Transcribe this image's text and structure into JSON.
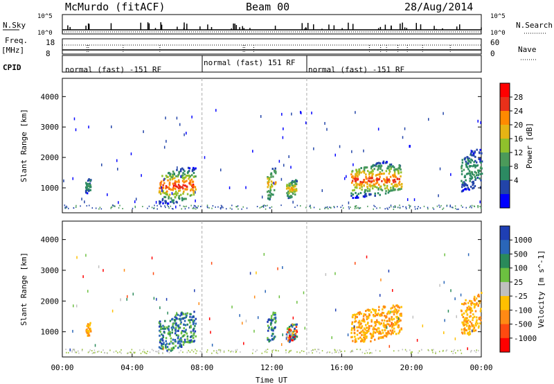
{
  "header": {
    "site": "McMurdo (fitACF)",
    "beam": "Beam 00",
    "date": "28/Aug/2014"
  },
  "top_panels": {
    "nsky_label": "N.Sky",
    "nsky_ticks": [
      "10^5",
      "10^0"
    ],
    "nsearch_label": "N.Search",
    "nsearch_ticks": [
      "10^5",
      "10^0"
    ],
    "freq_label_1": "Freq.",
    "freq_label_2": "[MHz]",
    "freq_ticks": [
      "18",
      "8"
    ],
    "nave_label": "Nave",
    "nave_ticks": [
      "60",
      "0"
    ],
    "cpid_label": "CPID",
    "cpid_segments": [
      {
        "label": "normal (fast) -151 RF",
        "start_hour": 0
      },
      {
        "label": "normal (fast) 151 RF",
        "start_hour": 8
      },
      {
        "label": "normal (fast) -151 RF",
        "start_hour": 14
      }
    ]
  },
  "chart_data": [
    {
      "type": "heatmap",
      "panel": "power",
      "ylabel": "Slant Range [km]",
      "ylim": [
        180,
        4600
      ],
      "yticks": [
        1000,
        2000,
        3000,
        4000
      ],
      "xlim_hours": [
        0,
        24
      ],
      "colorbar": {
        "label": "Power [dB]",
        "ticks": [
          "28",
          "24",
          "20",
          "16",
          "12",
          "8",
          "4"
        ],
        "colors": [
          "#ff0000",
          "#e9301a",
          "#ff8a00",
          "#e6b414",
          "#8fc02c",
          "#4b9a5a",
          "#2c8a62",
          "#2244a8",
          "#0000ff"
        ]
      },
      "regions": [
        {
          "t0": 1.3,
          "t1": 1.6,
          "r0": 850,
          "r1": 1350,
          "level": "low"
        },
        {
          "t0": 5.5,
          "t1": 7.6,
          "r0": 500,
          "r1": 1700,
          "level": "high"
        },
        {
          "t0": 11.7,
          "t1": 12.2,
          "r0": 650,
          "r1": 1700,
          "level": "mid"
        },
        {
          "t0": 12.8,
          "t1": 13.4,
          "r0": 700,
          "r1": 1300,
          "level": "mid"
        },
        {
          "t0": 16.5,
          "t1": 19.4,
          "r0": 700,
          "r1": 1900,
          "level": "high"
        },
        {
          "t0": 22.8,
          "t1": 24.0,
          "r0": 900,
          "r1": 2300,
          "level": "low"
        }
      ]
    },
    {
      "type": "heatmap",
      "panel": "velocity",
      "ylabel": "Slant Range [km]",
      "ylim": [
        180,
        4600
      ],
      "yticks": [
        1000,
        2000,
        3000,
        4000
      ],
      "xlim_hours": [
        0,
        24
      ],
      "xticks": [
        "00:00",
        "04:00",
        "08:00",
        "12:00",
        "16:00",
        "20:00",
        "00:00"
      ],
      "xlabel": "Time UT",
      "colorbar": {
        "label": "Velocity [m s^-1]",
        "ticks": [
          "1000",
          "500",
          "100",
          "25",
          "-25",
          "-100",
          "-500",
          "-1000"
        ],
        "colors": [
          "#1f3fb4",
          "#2a66b8",
          "#2a8a5a",
          "#6cc040",
          "#c0c0c0",
          "#ffc000",
          "#ff8a14",
          "#ff4a10",
          "#ff0000"
        ]
      },
      "regions": [
        {
          "t0": 1.3,
          "t1": 1.6,
          "r0": 850,
          "r1": 1350,
          "level": "neg"
        },
        {
          "t0": 5.5,
          "t1": 7.6,
          "r0": 400,
          "r1": 1700,
          "level": "pos"
        },
        {
          "t0": 11.7,
          "t1": 12.2,
          "r0": 650,
          "r1": 1700,
          "level": "pos"
        },
        {
          "t0": 12.8,
          "t1": 13.4,
          "r0": 700,
          "r1": 1300,
          "level": "mix"
        },
        {
          "t0": 16.5,
          "t1": 19.4,
          "r0": 700,
          "r1": 1900,
          "level": "neg"
        },
        {
          "t0": 22.8,
          "t1": 24.0,
          "r0": 900,
          "r1": 2300,
          "level": "neg"
        }
      ]
    }
  ]
}
